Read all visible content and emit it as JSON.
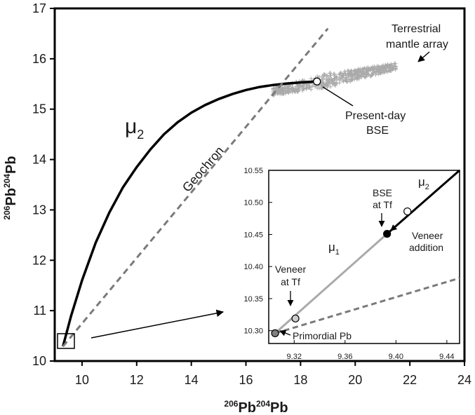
{
  "chart_data": [
    {
      "type": "line",
      "xlabel_base": "Pb",
      "xlabel_sup1": "206",
      "xlabel_sup2": "204",
      "ylabel_base": "Pb",
      "ylabel_sup1": "206",
      "ylabel_sup2": "204",
      "xlim": [
        9,
        24
      ],
      "ylim": [
        10,
        17
      ],
      "xticks": [
        10,
        12,
        14,
        16,
        18,
        20,
        22,
        24
      ],
      "yticks": [
        10,
        11,
        12,
        13,
        14,
        15,
        16,
        17
      ],
      "series": [
        {
          "name": "μ2",
          "style": "solid",
          "color": "#000000",
          "x": [
            9.3,
            9.6,
            10.0,
            10.5,
            11.0,
            11.5,
            12.0,
            12.5,
            13.0,
            13.5,
            14.0,
            14.5,
            15.0,
            15.5,
            16.0,
            16.5,
            17.0,
            17.5,
            18.0,
            18.6
          ],
          "y": [
            10.29,
            10.9,
            11.6,
            12.35,
            12.95,
            13.45,
            13.85,
            14.2,
            14.5,
            14.74,
            14.93,
            15.08,
            15.2,
            15.3,
            15.38,
            15.44,
            15.48,
            15.51,
            15.53,
            15.55
          ]
        },
        {
          "name": "Geochron",
          "style": "dashed",
          "color": "#7a7a7a",
          "x": [
            9.3,
            19.0
          ],
          "y": [
            10.29,
            16.6
          ]
        }
      ],
      "points": [
        {
          "label": "Present-day BSE",
          "x": 18.6,
          "y": 15.55,
          "fill": "#ffffff"
        }
      ],
      "scatter_region": {
        "label": "Terrestrial mantle array",
        "color": "#aaaaaa",
        "x_range": [
          17.0,
          21.5
        ],
        "y_range": [
          15.35,
          15.85
        ]
      },
      "annotations": {
        "mu2": "μ",
        "mu2_sub": "2",
        "geochron": "Geochron",
        "mantle_line1": "Terrestrial",
        "mantle_line2": "mantle array",
        "bse_line1": "Present-day",
        "bse_line2": "BSE"
      }
    },
    {
      "type": "line",
      "inset": true,
      "xlim": [
        9.3,
        9.45
      ],
      "ylim": [
        10.28,
        10.55
      ],
      "xticks": [
        "9.32",
        "9.36",
        "9.40",
        "9.44"
      ],
      "yticks": [
        "10.30",
        "10.35",
        "10.40",
        "10.45",
        "10.50",
        "10.55"
      ],
      "series": [
        {
          "name": "μ1",
          "style": "solid",
          "color": "#aaaaaa",
          "x": [
            9.305,
            9.393
          ],
          "y": [
            10.296,
            10.451
          ]
        },
        {
          "name": "μ2",
          "style": "solid",
          "color": "#000000",
          "x": [
            9.393,
            9.45
          ],
          "y": [
            10.451,
            10.55
          ]
        },
        {
          "name": "Geochron",
          "style": "dashed",
          "color": "#7a7a7a",
          "x": [
            9.305,
            9.45
          ],
          "y": [
            10.296,
            10.382
          ]
        }
      ],
      "points": [
        {
          "label": "Primordial Pb",
          "x": 9.305,
          "y": 10.296,
          "fill": "#808080"
        },
        {
          "label": "Veneer at Tf",
          "x": 9.321,
          "y": 10.319,
          "fill": "#cccccc"
        },
        {
          "label": "BSE at Tf",
          "x": 9.393,
          "y": 10.451,
          "fill": "#000000"
        },
        {
          "label": "present",
          "x": 9.409,
          "y": 10.486,
          "fill": "#ffffff"
        }
      ],
      "annotations": {
        "mu1": "μ",
        "mu1_sub": "1",
        "mu2": "μ",
        "mu2_sub": "2",
        "bse_line1": "BSE",
        "bse_line2": "at Tf",
        "veneer_line1": "Veneer",
        "veneer_line2": "at Tf",
        "veneer_add_line1": "Veneer",
        "veneer_add_line2": "addition",
        "primordial": "Primordial Pb"
      }
    }
  ]
}
